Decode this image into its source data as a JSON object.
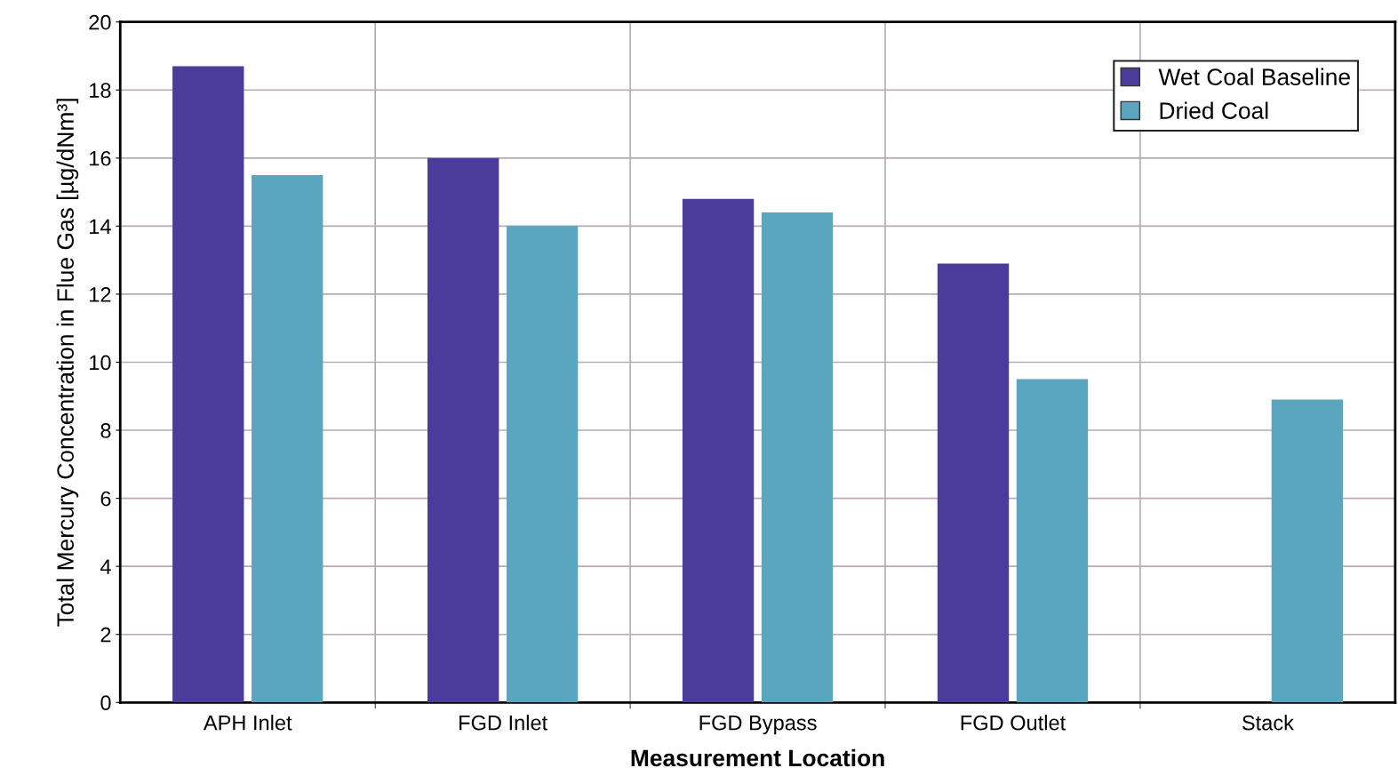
{
  "chart_data": {
    "type": "bar",
    "xlabel": "Measurement Location",
    "ylabel": "Total Mercury Concentration in Flue Gas [µg/dNm³]",
    "categories": [
      "APH Inlet",
      "FGD Inlet",
      "FGD Bypass",
      "FGD Outlet",
      "Stack"
    ],
    "series": [
      {
        "name": "Wet Coal Baseline",
        "color": "#4b3c9c",
        "values": [
          18.7,
          16.0,
          14.8,
          12.9,
          null
        ]
      },
      {
        "name": "Dried Coal",
        "color": "#5aa6be",
        "values": [
          15.5,
          14.0,
          14.4,
          9.5,
          8.9
        ]
      }
    ],
    "ylim": [
      0,
      20
    ],
    "yticks": [
      0,
      2,
      4,
      6,
      8,
      10,
      12,
      14,
      16,
      18,
      20
    ],
    "grid": true,
    "legend": "top right"
  }
}
